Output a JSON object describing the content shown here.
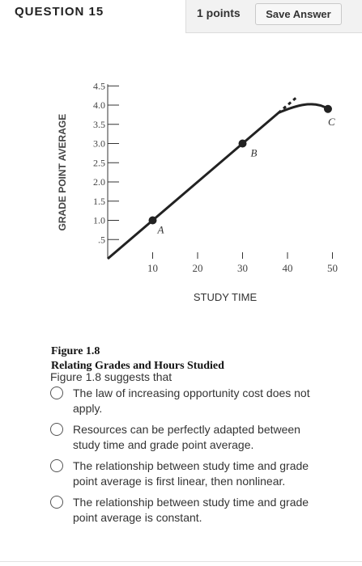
{
  "header": {
    "question_title": "QUESTION 15",
    "points_label": "1 points",
    "save_label": "Save Answer"
  },
  "figure": {
    "caption_line1": "Figure 1.8",
    "caption_line2": "Relating Grades and Hours Studied"
  },
  "chart_data": {
    "type": "line",
    "title": "",
    "xlabel": "STUDY TIME",
    "ylabel": "GRADE POINT AVERAGE",
    "xlim": [
      0,
      50
    ],
    "ylim": [
      0,
      4.5
    ],
    "x_ticks": [
      "10",
      "20",
      "30",
      "40",
      "50"
    ],
    "y_ticks": [
      ".5",
      "1.0",
      "1.5",
      "2.0",
      "2.5",
      "3.0",
      "3.5",
      "4.0",
      "4.5"
    ],
    "grid": false,
    "series": [
      {
        "style": "solid",
        "x": [
          0,
          10,
          30,
          38,
          42,
          46,
          49
        ],
        "y": [
          0,
          1.0,
          3.0,
          3.8,
          4.0,
          4.05,
          3.9
        ]
      },
      {
        "style": "dashed",
        "x": [
          38,
          42
        ],
        "y": [
          3.8,
          4.2
        ]
      }
    ],
    "points": [
      {
        "label": "A",
        "x": 10,
        "y": 1.0
      },
      {
        "label": "B",
        "x": 30,
        "y": 3.0
      },
      {
        "label": "C",
        "x": 49,
        "y": 3.9
      }
    ]
  },
  "question": {
    "prompt": "Figure 1.8 suggests that",
    "options": [
      {
        "line1": "The law of increasing opportunity cost does not",
        "line2": "apply."
      },
      {
        "line1": "Resources can be perfectly adapted between",
        "line2": "study time and grade point average."
      },
      {
        "line1": "The relationship between study time and grade",
        "line2": "point average is first linear, then nonlinear."
      },
      {
        "line1": "The relationship between study time and grade",
        "line2": "point average is constant."
      }
    ]
  }
}
